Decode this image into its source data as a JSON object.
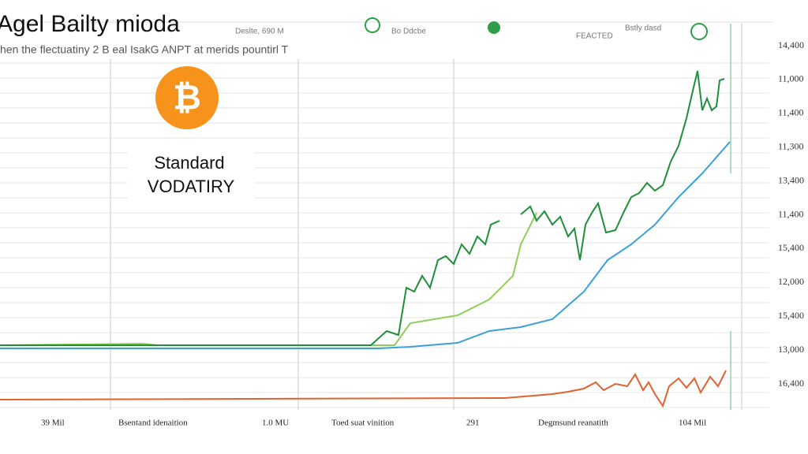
{
  "header": {
    "title": "Agel Bailty mioda",
    "subtitle": "hen the flectuatiny 2 B eal IsakG ANPT at merids pountirl T"
  },
  "legend": [
    "Deslte, 690 M",
    "Bo Ddcbe",
    "FEACTED",
    "Bstly dasd"
  ],
  "badge": {
    "icon": "₿",
    "lines": [
      "Standard",
      "VODATIRY"
    ]
  },
  "axis_labels": [
    "14,400",
    "11,000",
    "11,400",
    "11,300",
    "13,400",
    "11,400",
    "15,400",
    "12,000",
    "15,400",
    "13,000",
    "16,400"
  ],
  "footer_labels": [
    "39 Mil",
    "Bsentand idenaition",
    "1.0 MU",
    "Toed suat vinition",
    "291",
    "Degmsund reanatith",
    "104 Mil"
  ]
}
